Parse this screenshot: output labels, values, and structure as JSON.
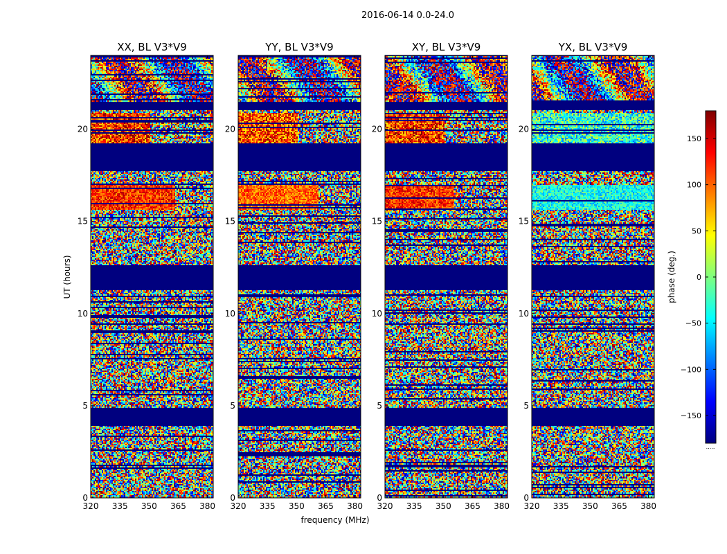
{
  "chart_data": {
    "type": "heatmap",
    "suptitle": "2016-06-14 0.0-24.0",
    "xlabel": "frequency (MHz)",
    "ylabel": "UT (hours)",
    "xlim": [
      320,
      383
    ],
    "ylim": [
      0,
      24
    ],
    "xticks": [
      320,
      335,
      350,
      365,
      380
    ],
    "yticks": [
      0,
      5,
      10,
      15,
      20
    ],
    "panels": [
      {
        "title": "XX, BL V3*V9",
        "gradient_rows": [
          {
            "t0": 15.6,
            "t1": 17.0,
            "mean_phase": 120,
            "spread": 45,
            "f_until": 363
          },
          {
            "t0": 19.2,
            "t1": 20.9,
            "mean_phase": 120,
            "spread": 70,
            "f_until": 350
          }
        ]
      },
      {
        "title": "YY, BL V3*V9",
        "gradient_rows": [
          {
            "t0": 15.6,
            "t1": 17.0,
            "mean_phase": 100,
            "spread": 40,
            "f_until": 361
          },
          {
            "t0": 19.2,
            "t1": 20.9,
            "mean_phase": 110,
            "spread": 70,
            "f_until": 350
          }
        ]
      },
      {
        "title": "XY, BL V3*V9",
        "gradient_rows": [
          {
            "t0": 15.6,
            "t1": 17.0,
            "mean_phase": 120,
            "spread": 45,
            "f_until": 355
          },
          {
            "t0": 19.2,
            "t1": 20.9,
            "mean_phase": 120,
            "spread": 70,
            "f_until": 350
          }
        ]
      },
      {
        "title": "YX, BL V3*V9",
        "gradient_rows": [
          {
            "t0": 15.6,
            "t1": 17.0,
            "mean_phase": -40,
            "spread": 45,
            "f_until": 383
          },
          {
            "t0": 19.2,
            "t1": 20.9,
            "mean_phase": -30,
            "spread": 70,
            "f_until": 383
          }
        ]
      }
    ],
    "flagged_ranges_hours": [
      [
        3.9,
        4.9
      ],
      [
        11.3,
        12.6
      ],
      [
        17.7,
        19.2
      ],
      [
        21.0,
        21.5
      ]
    ],
    "colorbar": {
      "label": "phase (deg.)",
      "range": [
        -180,
        180
      ],
      "ticks": [
        -150,
        -100,
        -50,
        0,
        50,
        100,
        150
      ],
      "colormap": "jet",
      "colors": [
        "#00007f",
        "#0000ff",
        "#007fff",
        "#00ffff",
        "#7fff7f",
        "#ffff00",
        "#ff7f00",
        "#ff0000",
        "#7f0000"
      ],
      "footer": "....."
    }
  }
}
